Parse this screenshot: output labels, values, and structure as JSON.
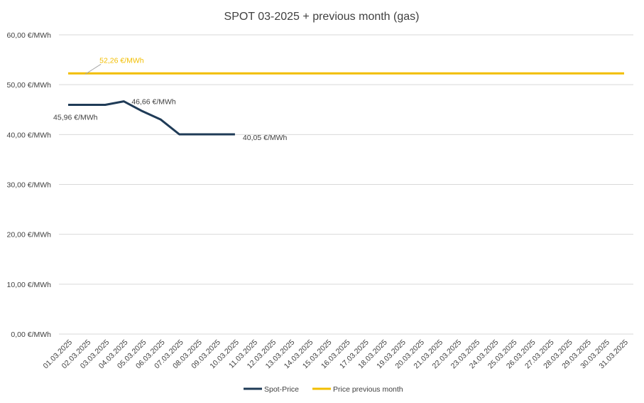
{
  "chart_data": {
    "type": "line",
    "title": "SPOT 03-2025 + previous month (gas)",
    "xlabel": "",
    "ylabel": "",
    "ylim": [
      0,
      60
    ],
    "y_ticks": [
      "0,00 €/MWh",
      "10,00 €/MWh",
      "20,00 €/MWh",
      "30,00 €/MWh",
      "40,00 €/MWh",
      "50,00 €/MWh",
      "60,00 €/MWh"
    ],
    "grid": true,
    "legend_position": "bottom",
    "categories": [
      "01.03.2025",
      "02.03.2025",
      "03.03.2025",
      "04.03.2025",
      "05.03.2025",
      "06.03.2025",
      "07.03.2025",
      "08.03.2025",
      "09.03.2025",
      "10.03.2025",
      "11.03.2025",
      "12.03.2025",
      "13.03.2025",
      "14.03.2025",
      "15.03.2025",
      "16.03.2025",
      "17.03.2025",
      "18.03.2025",
      "19.03.2025",
      "20.03.2025",
      "21.03.2025",
      "22.03.2025",
      "23.03.2025",
      "24.03.2025",
      "25.03.2025",
      "26.03.2025",
      "27.03.2025",
      "28.03.2025",
      "29.03.2025",
      "30.03.2025",
      "31.03.2025"
    ],
    "series": [
      {
        "name": "Spot-Price",
        "color": "#1f3b57",
        "values": [
          45.96,
          45.96,
          45.96,
          46.66,
          44.7,
          43.0,
          40.05,
          40.05,
          40.05,
          40.05,
          null,
          null,
          null,
          null,
          null,
          null,
          null,
          null,
          null,
          null,
          null,
          null,
          null,
          null,
          null,
          null,
          null,
          null,
          null,
          null,
          null
        ]
      },
      {
        "name": "Price previous month",
        "color": "#f2be00",
        "values": [
          52.26,
          52.26,
          52.26,
          52.26,
          52.26,
          52.26,
          52.26,
          52.26,
          52.26,
          52.26,
          52.26,
          52.26,
          52.26,
          52.26,
          52.26,
          52.26,
          52.26,
          52.26,
          52.26,
          52.26,
          52.26,
          52.26,
          52.26,
          52.26,
          52.26,
          52.26,
          52.26,
          52.26,
          52.26,
          52.26,
          52.26
        ]
      }
    ],
    "annotations": [
      {
        "series": 0,
        "index": 0,
        "text": "45,96 €/MWh"
      },
      {
        "series": 0,
        "index": 3,
        "text": "46,66 €/MWh"
      },
      {
        "series": 0,
        "index": 9,
        "text": "40,05 €/MWh"
      },
      {
        "series": 1,
        "index": 1,
        "text": "52,26 €/MWh"
      }
    ]
  }
}
